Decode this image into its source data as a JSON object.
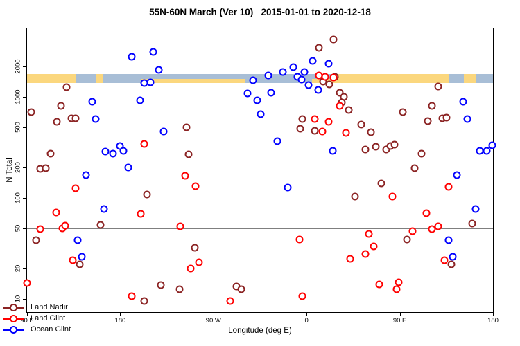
{
  "chart_data": {
    "type": "scatter",
    "title": "55N-60N March (Ver 10)   2015-01-01 to 2020-12-18",
    "xlabel": "Longitude (deg E)",
    "ylabel": "N Total",
    "y_scale": "log",
    "y_range": [
      7.4,
      4730
    ],
    "x_range": [
      90,
      540
    ],
    "grid": false,
    "legend_position": "bottom-left",
    "y_ticks": [
      2000,
      1000,
      500,
      200,
      100,
      50,
      20,
      10
    ],
    "x_ticks": [
      {
        "value": 90,
        "label": "90 E"
      },
      {
        "value": 180,
        "label": "180"
      },
      {
        "value": 270,
        "label": "90 W"
      },
      {
        "value": 360,
        "label": "0"
      },
      {
        "value": 450,
        "label": "90 E"
      },
      {
        "value": 540,
        "label": "180"
      }
    ],
    "reference_line": {
      "y": 50,
      "color": "#7f7f7f"
    },
    "map_band": {
      "n_top": 1680,
      "n_bottom": 1370,
      "land_color": "#FBD77E",
      "ocean_color": "#A8BED6",
      "segments": [
        {
          "from": 90,
          "to": 137,
          "type": "land"
        },
        {
          "from": 137,
          "to": 156,
          "type": "ocean"
        },
        {
          "from": 156,
          "to": 163,
          "type": "land"
        },
        {
          "from": 163,
          "to": 200,
          "type": "ocean"
        },
        {
          "from": 200,
          "to": 300,
          "type": "mixed"
        },
        {
          "from": 300,
          "to": 365,
          "type": "ocean"
        },
        {
          "from": 365,
          "to": 387,
          "type": "mixed"
        },
        {
          "from": 387,
          "to": 497,
          "type": "land"
        },
        {
          "from": 497,
          "to": 512,
          "type": "ocean"
        },
        {
          "from": 512,
          "to": 523,
          "type": "land"
        },
        {
          "from": 523,
          "to": 540,
          "type": "ocean"
        }
      ]
    },
    "series": [
      {
        "name": "Land Nadir",
        "color": "#8B2323",
        "points": [
          [
            94,
            700
          ],
          [
            128,
            1230
          ],
          [
            123,
            805
          ],
          [
            119,
            560
          ],
          [
            133,
            608
          ],
          [
            137,
            608
          ],
          [
            113,
            273
          ],
          [
            103,
            192
          ],
          [
            108,
            196
          ],
          [
            161,
            54
          ],
          [
            99,
            38
          ],
          [
            206,
            107
          ],
          [
            141,
            22
          ],
          [
            219,
            13.7
          ],
          [
            203,
            9.5
          ],
          [
            244,
            495
          ],
          [
            246,
            269
          ],
          [
            252,
            32
          ],
          [
            237,
            12.5
          ],
          [
            292,
            13.2
          ],
          [
            297,
            12.4
          ],
          [
            356,
            598
          ],
          [
            354,
            480
          ],
          [
            368,
            458
          ],
          [
            372,
            3050
          ],
          [
            386,
            3680
          ],
          [
            387,
            1580
          ],
          [
            376,
            1415
          ],
          [
            382,
            1310
          ],
          [
            392,
            1100
          ],
          [
            396,
            990
          ],
          [
            394,
            870
          ],
          [
            401,
            740
          ],
          [
            413,
            527
          ],
          [
            422,
            444
          ],
          [
            417,
            300
          ],
          [
            427,
            319
          ],
          [
            437,
            300
          ],
          [
            441,
            324
          ],
          [
            445,
            334
          ],
          [
            453,
            700
          ],
          [
            481,
            805
          ],
          [
            487,
            1250
          ],
          [
            477,
            570
          ],
          [
            491,
            610
          ],
          [
            495,
            617
          ],
          [
            471,
            273
          ],
          [
            464,
            196
          ],
          [
            432,
            139
          ],
          [
            407,
            102
          ],
          [
            457,
            38.5
          ],
          [
            520,
            56
          ],
          [
            500,
            22
          ]
        ]
      },
      {
        "name": "Land Glint",
        "color": "#FF0000",
        "points": [
          [
            90,
            14.3
          ],
          [
            103,
            49
          ],
          [
            118,
            71
          ],
          [
            124,
            50
          ],
          [
            127,
            53
          ],
          [
            134,
            24
          ],
          [
            137,
            125
          ],
          [
            191,
            10.6
          ],
          [
            200,
            69
          ],
          [
            203,
            340
          ],
          [
            238,
            52
          ],
          [
            243,
            165
          ],
          [
            248,
            20
          ],
          [
            253,
            131
          ],
          [
            256,
            23
          ],
          [
            286,
            9.5
          ],
          [
            353,
            39
          ],
          [
            356,
            10.6
          ],
          [
            368,
            598
          ],
          [
            372,
            1610
          ],
          [
            375,
            452
          ],
          [
            378,
            1560
          ],
          [
            381,
            560
          ],
          [
            386,
            1540
          ],
          [
            392,
            805
          ],
          [
            398,
            438
          ],
          [
            402,
            25
          ],
          [
            417,
            28
          ],
          [
            420,
            44
          ],
          [
            425,
            33
          ],
          [
            430,
            14
          ],
          [
            443,
            103
          ],
          [
            447,
            12.5
          ],
          [
            449,
            14.6
          ],
          [
            462,
            47
          ],
          [
            476,
            70
          ],
          [
            481,
            49
          ],
          [
            487,
            52
          ],
          [
            493,
            24
          ],
          [
            497,
            129
          ]
        ]
      },
      {
        "name": "Ocean Glint",
        "color": "#0000FF",
        "points": [
          [
            191,
            2460
          ],
          [
            212,
            2780
          ],
          [
            217,
            1850
          ],
          [
            203,
            1370
          ],
          [
            209,
            1390
          ],
          [
            199,
            912
          ],
          [
            153,
            890
          ],
          [
            156,
            598
          ],
          [
            222,
            452
          ],
          [
            180,
            324
          ],
          [
            183,
            291
          ],
          [
            166,
            287
          ],
          [
            173,
            273
          ],
          [
            188,
            200
          ],
          [
            147,
            168
          ],
          [
            164,
            77
          ],
          [
            139,
            38
          ],
          [
            143,
            26
          ],
          [
            308,
            1460
          ],
          [
            323,
            1610
          ],
          [
            303,
            1070
          ],
          [
            326,
            1090
          ],
          [
            312,
            925
          ],
          [
            316,
            667
          ],
          [
            332,
            361
          ],
          [
            342,
            127
          ],
          [
            337,
            1760
          ],
          [
            347,
            1970
          ],
          [
            358,
            1740
          ],
          [
            366,
            2240
          ],
          [
            381,
            2130
          ],
          [
            351,
            1570
          ],
          [
            355,
            1480
          ],
          [
            362,
            1290
          ],
          [
            371,
            1170
          ],
          [
            385,
            291
          ],
          [
            511,
            890
          ],
          [
            515,
            598
          ],
          [
            505,
            168
          ],
          [
            523,
            77
          ],
          [
            497,
            38
          ],
          [
            501,
            26
          ],
          [
            527,
            291
          ],
          [
            534,
            289
          ],
          [
            539,
            332
          ]
        ]
      }
    ]
  }
}
